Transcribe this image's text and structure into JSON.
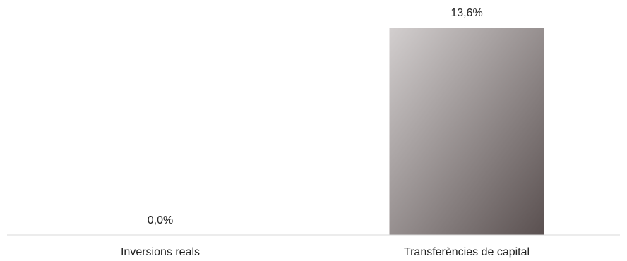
{
  "chart_data": {
    "type": "bar",
    "categories": [
      "Inversions reals",
      "Transferències de capital"
    ],
    "values": [
      0.0,
      13.6
    ],
    "data_labels": [
      "0,0%",
      "13,6%"
    ],
    "title": "",
    "xlabel": "",
    "ylabel": "",
    "ylim": [
      0,
      13.6
    ],
    "grid": false,
    "legend": "none",
    "colors": {
      "bar_gradient_start": "#d3cfcf",
      "bar_gradient_end": "#5a5050",
      "baseline": "#d9d9d9",
      "text": "#222222"
    }
  }
}
